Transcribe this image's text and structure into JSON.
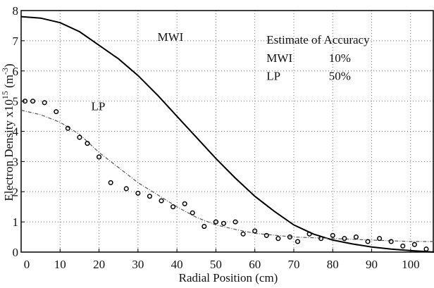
{
  "chart_data": {
    "type": "line",
    "xlabel": "Radial Position (cm)",
    "ylabel": [
      "Electron Density x10",
      "15",
      " (m",
      "-3",
      ")"
    ],
    "xlim": [
      0,
      106
    ],
    "ylim": [
      0,
      8
    ],
    "xticks": [
      0,
      10,
      20,
      30,
      40,
      50,
      60,
      70,
      80,
      90,
      100
    ],
    "yticks": [
      0,
      1,
      2,
      3,
      4,
      5,
      6,
      7,
      8
    ],
    "grid": true,
    "series": [
      {
        "style": "solid",
        "color": "#000000",
        "x": [
          0,
          5,
          10,
          15,
          20,
          25,
          30,
          35,
          40,
          45,
          50,
          55,
          60,
          65,
          70,
          75,
          80,
          85,
          90,
          95,
          100,
          106
        ],
        "values": [
          7.8,
          7.75,
          7.6,
          7.3,
          6.85,
          6.4,
          5.85,
          5.2,
          4.5,
          3.8,
          3.1,
          2.45,
          1.85,
          1.35,
          0.9,
          0.6,
          0.4,
          0.27,
          0.17,
          0.1,
          0.05,
          0
        ]
      },
      {
        "style": "dashed",
        "color": "#555555",
        "x": [
          0,
          5,
          10,
          15,
          20,
          25,
          30,
          35,
          40,
          45,
          50,
          55,
          60,
          70,
          80,
          90,
          100,
          106
        ],
        "values": [
          4.7,
          4.55,
          4.3,
          3.9,
          3.3,
          2.8,
          2.3,
          1.9,
          1.5,
          1.15,
          0.9,
          0.75,
          0.62,
          0.5,
          0.45,
          0.4,
          0.35,
          0.35
        ]
      },
      {
        "style": "points",
        "color": "#000000",
        "x": [
          1,
          3,
          6,
          9,
          12,
          15,
          17,
          20,
          23,
          27,
          30,
          33,
          36,
          39,
          42,
          44,
          47,
          50,
          52,
          55,
          57,
          60,
          63,
          66,
          69,
          71,
          74,
          77,
          80,
          83,
          86,
          89,
          92,
          95,
          98,
          101,
          104
        ],
        "values": [
          5.0,
          5.0,
          4.95,
          4.65,
          4.1,
          3.8,
          3.6,
          3.15,
          2.3,
          2.1,
          1.95,
          1.85,
          1.7,
          1.5,
          1.6,
          1.3,
          0.85,
          1.0,
          0.95,
          1.0,
          0.6,
          0.7,
          0.55,
          0.45,
          0.5,
          0.35,
          0.6,
          0.45,
          0.55,
          0.45,
          0.5,
          0.35,
          0.45,
          0.35,
          0.2,
          0.25,
          0.1
        ]
      }
    ],
    "annotations": [
      {
        "text": "MWI",
        "x": 35,
        "y": 7.0
      },
      {
        "text": "LP",
        "x": 18,
        "y": 4.7
      },
      {
        "text": "Estimate of Accuracy",
        "x": 63,
        "y": 6.9
      },
      {
        "text": "MWI",
        "x": 63,
        "y": 6.3
      },
      {
        "text": "10%",
        "x": 79,
        "y": 6.3
      },
      {
        "text": "LP",
        "x": 63,
        "y": 5.7
      },
      {
        "text": "50%",
        "x": 79,
        "y": 5.7
      }
    ]
  }
}
